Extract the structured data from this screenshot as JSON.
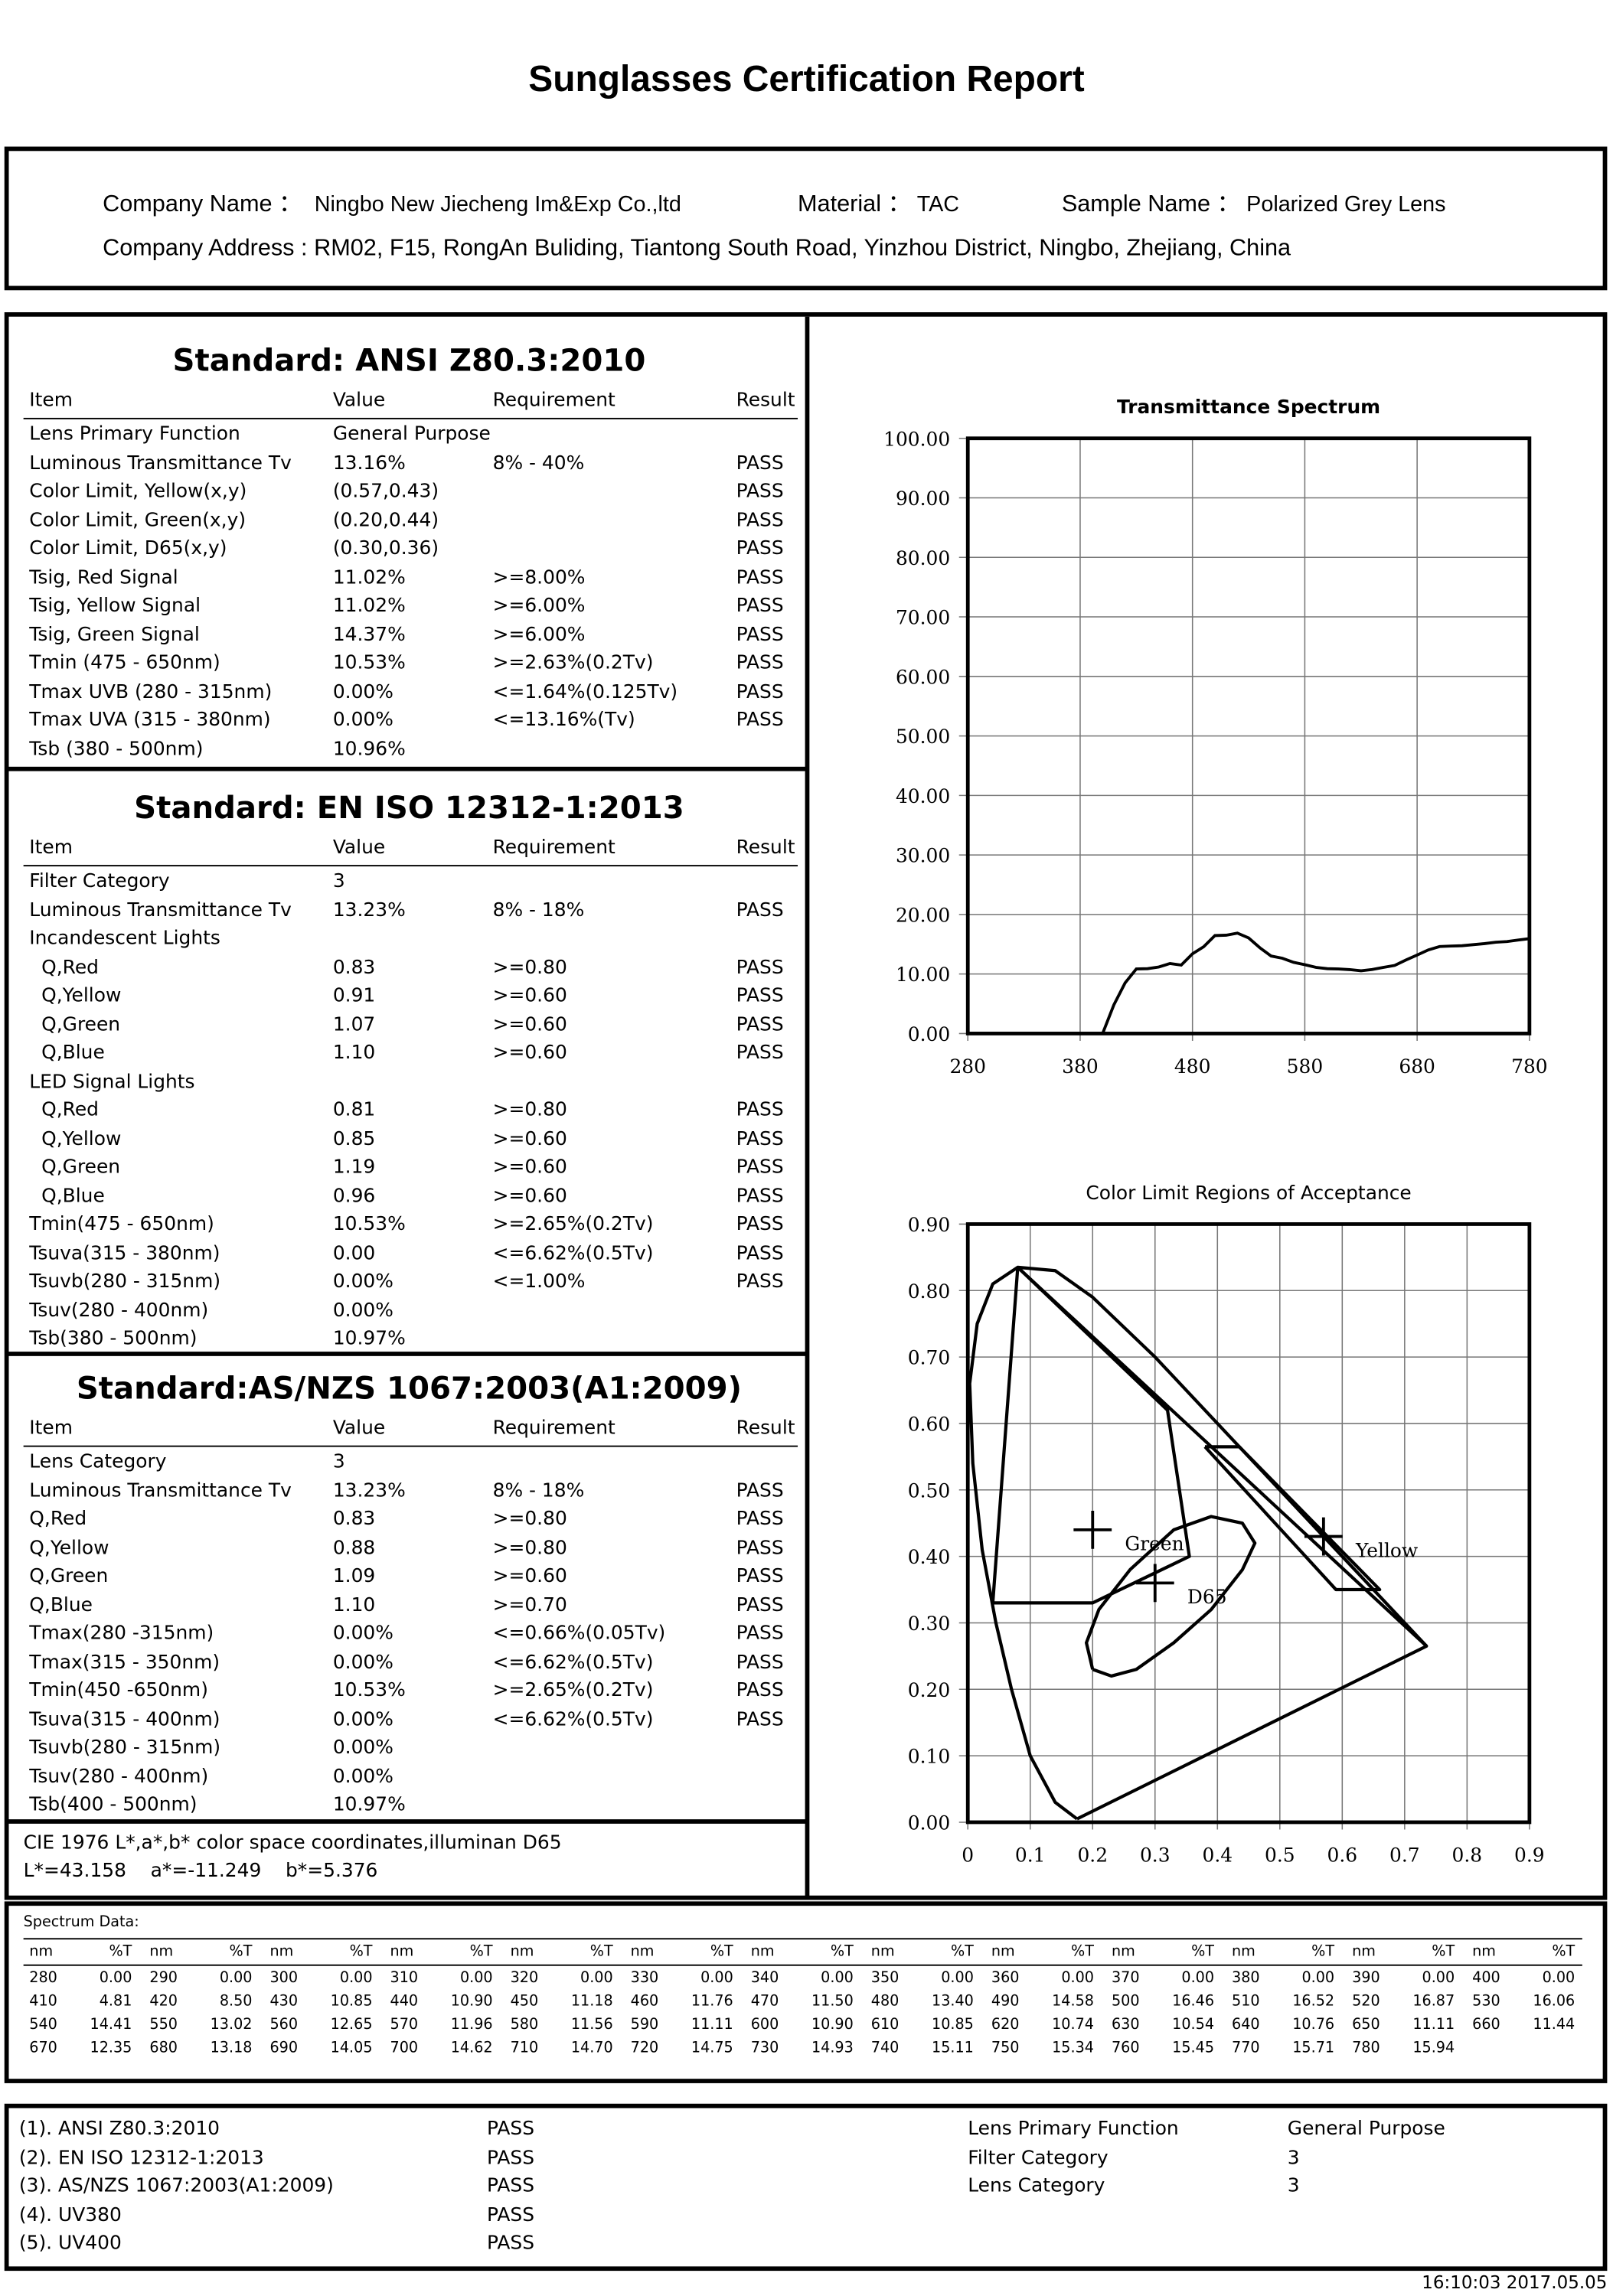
{
  "title": "Sunglasses Certification Report",
  "header": {
    "company_name_label": "Company Name ：",
    "company_name": "Ningbo New Jiecheng Im&Exp Co.,ltd",
    "material_label": "Material ：",
    "material": "TAC",
    "sample_name_label": "Sample Name ：",
    "sample_name": "Polarized Grey Lens",
    "company_address_label": "Company Address :",
    "company_address": "RM02, F15, RongAn Buliding, Tiantong South Road, Yinzhou District, Ningbo, Zhejiang, China"
  },
  "columns": [
    "Item",
    "Value",
    "Requirement",
    "Result"
  ],
  "ansi": {
    "title": "Standard: ANSI Z80.3:2010",
    "rows": [
      [
        "Lens Primary Function",
        "General Purpose",
        "",
        ""
      ],
      [
        "Luminous Transmittance Tv",
        "13.16%",
        "8% - 40%",
        "PASS"
      ],
      [
        "Color Limit, Yellow(x,y)",
        "(0.57,0.43)",
        "",
        "PASS"
      ],
      [
        "Color Limit, Green(x,y)",
        "(0.20,0.44)",
        "",
        "PASS"
      ],
      [
        "Color Limit, D65(x,y)",
        "(0.30,0.36)",
        "",
        "PASS"
      ],
      [
        "Tsig, Red Signal",
        "11.02%",
        ">=8.00%",
        "PASS"
      ],
      [
        "Tsig, Yellow Signal",
        "11.02%",
        ">=6.00%",
        "PASS"
      ],
      [
        "Tsig, Green Signal",
        "14.37%",
        ">=6.00%",
        "PASS"
      ],
      [
        "Tmin (475 - 650nm)",
        "10.53%",
        ">=2.63%(0.2Tv)",
        "PASS"
      ],
      [
        "Tmax UVB (280 - 315nm)",
        "0.00%",
        "<=1.64%(0.125Tv)",
        "PASS"
      ],
      [
        "Tmax UVA (315 - 380nm)",
        "0.00%",
        "<=13.16%(Tv)",
        "PASS"
      ],
      [
        "Tsb (380 - 500nm)",
        "10.96%",
        "",
        ""
      ]
    ]
  },
  "en": {
    "title": "Standard: EN ISO 12312-1:2013",
    "rows": [
      [
        "Filter Category",
        "3",
        "",
        ""
      ],
      [
        "Luminous Transmittance Tv",
        "13.23%",
        "8% - 18%",
        "PASS"
      ],
      [
        "Incandescent Lights",
        "",
        "",
        ""
      ],
      [
        "  Q,Red",
        "0.83",
        ">=0.80",
        "PASS"
      ],
      [
        "  Q,Yellow",
        "0.91",
        ">=0.60",
        "PASS"
      ],
      [
        "  Q,Green",
        "1.07",
        ">=0.60",
        "PASS"
      ],
      [
        "  Q,Blue",
        "1.10",
        ">=0.60",
        "PASS"
      ],
      [
        "LED Signal Lights",
        "",
        "",
        ""
      ],
      [
        "  Q,Red",
        "0.81",
        ">=0.80",
        "PASS"
      ],
      [
        "  Q,Yellow",
        "0.85",
        ">=0.60",
        "PASS"
      ],
      [
        "  Q,Green",
        "1.19",
        ">=0.60",
        "PASS"
      ],
      [
        "  Q,Blue",
        "0.96",
        ">=0.60",
        "PASS"
      ],
      [
        "Tmin(475 - 650nm)",
        "10.53%",
        ">=2.65%(0.2Tv)",
        "PASS"
      ],
      [
        "Tsuva(315 - 380nm)",
        "0.00",
        "<=6.62%(0.5Tv)",
        "PASS"
      ],
      [
        "Tsuvb(280 - 315nm)",
        "0.00%",
        "<=1.00%",
        "PASS"
      ],
      [
        "Tsuv(280 - 400nm)",
        "0.00%",
        "",
        ""
      ],
      [
        "Tsb(380 - 500nm)",
        "10.97%",
        "",
        ""
      ]
    ]
  },
  "asnzs": {
    "title": "Standard:AS/NZS 1067:2003(A1:2009)",
    "rows": [
      [
        "Lens Category",
        "3",
        "",
        ""
      ],
      [
        "Luminous Transmittance Tv",
        "13.23%",
        "8% - 18%",
        "PASS"
      ],
      [
        "Q,Red",
        "0.83",
        ">=0.80",
        "PASS"
      ],
      [
        "Q,Yellow",
        "0.88",
        ">=0.80",
        "PASS"
      ],
      [
        "Q,Green",
        "1.09",
        ">=0.60",
        "PASS"
      ],
      [
        "Q,Blue",
        "1.10",
        ">=0.70",
        "PASS"
      ],
      [
        "Tmax(280 -315nm)",
        "0.00%",
        "<=0.66%(0.05Tv)",
        "PASS"
      ],
      [
        "Tmax(315 - 350nm)",
        "0.00%",
        "<=6.62%(0.5Tv)",
        "PASS"
      ],
      [
        "Tmin(450 -650nm)",
        "10.53%",
        ">=2.65%(0.2Tv)",
        "PASS"
      ],
      [
        "Tsuva(315 - 400nm)",
        "0.00%",
        "<=6.62%(0.5Tv)",
        "PASS"
      ],
      [
        "Tsuvb(280 - 315nm)",
        "0.00%",
        "",
        ""
      ],
      [
        "Tsuv(280 - 400nm)",
        "0.00%",
        "",
        ""
      ],
      [
        "Tsb(400 - 500nm)",
        "10.97%",
        "",
        ""
      ]
    ]
  },
  "cie": {
    "line1": "CIE 1976 L*,a*,b* color space coordinates,illuminan D65",
    "line2": "L*=43.158    a*=-11.249    b*=5.376"
  },
  "spectrum_table": {
    "label": "Spectrum Data:",
    "col_nm": "nm",
    "col_t": "%T"
  },
  "summary": {
    "left": [
      [
        "(1). ANSI Z80.3:2010",
        "PASS"
      ],
      [
        "(2). EN ISO 12312-1:2013",
        "PASS"
      ],
      [
        "(3). AS/NZS 1067:2003(A1:2009)",
        "PASS"
      ],
      [
        "(4). UV380",
        "PASS"
      ],
      [
        "(5). UV400",
        "PASS"
      ]
    ],
    "right": [
      [
        "Lens Primary Function",
        "General Purpose"
      ],
      [
        "Filter Category",
        "3"
      ],
      [
        "Lens Category",
        "3"
      ]
    ]
  },
  "timestamp": "16:10:03 2017.05.05",
  "chart_data": [
    {
      "type": "line",
      "title": "Transmittance Spectrum",
      "xlim": [
        280,
        780
      ],
      "ylim": [
        0,
        100
      ],
      "xticks": [
        "280",
        "380",
        "480",
        "580",
        "680",
        "780"
      ],
      "yticks": [
        "0.00",
        "10.00",
        "20.00",
        "30.00",
        "40.00",
        "50.00",
        "60.00",
        "70.00",
        "80.00",
        "90.00",
        "100.00"
      ],
      "grid": true,
      "x": [
        280,
        290,
        300,
        310,
        320,
        330,
        340,
        350,
        360,
        370,
        380,
        390,
        400,
        410,
        420,
        430,
        440,
        450,
        460,
        470,
        480,
        490,
        500,
        510,
        520,
        530,
        540,
        550,
        560,
        570,
        580,
        590,
        600,
        610,
        620,
        630,
        640,
        650,
        660,
        670,
        680,
        690,
        700,
        710,
        720,
        730,
        740,
        750,
        760,
        770,
        780
      ],
      "y": [
        0,
        0,
        0,
        0,
        0,
        0,
        0,
        0,
        0,
        0,
        0,
        0,
        0,
        4.81,
        8.5,
        10.85,
        10.9,
        11.18,
        11.76,
        11.5,
        13.4,
        14.58,
        16.46,
        16.52,
        16.87,
        16.06,
        14.41,
        13.02,
        12.65,
        11.96,
        11.56,
        11.11,
        10.9,
        10.85,
        10.74,
        10.54,
        10.76,
        11.11,
        11.44,
        12.35,
        13.18,
        14.05,
        14.62,
        14.7,
        14.75,
        14.93,
        15.11,
        15.34,
        15.45,
        15.71,
        15.94
      ]
    },
    {
      "type": "scatter",
      "title": "Color Limit Regions of Acceptance",
      "xlim": [
        0,
        0.9
      ],
      "ylim": [
        0,
        0.9
      ],
      "xticks": [
        "0",
        "0.1",
        "0.2",
        "0.3",
        "0.4",
        "0.5",
        "0.6",
        "0.7",
        "0.8",
        "0.9"
      ],
      "yticks": [
        "0.00",
        "0.10",
        "0.20",
        "0.30",
        "0.40",
        "0.50",
        "0.60",
        "0.70",
        "0.80",
        "0.90"
      ],
      "grid": true,
      "points": [
        {
          "label": "Green",
          "x": 0.2,
          "y": 0.44
        },
        {
          "label": "D65",
          "x": 0.3,
          "y": 0.36
        },
        {
          "label": "Yellow",
          "x": 0.57,
          "y": 0.43
        }
      ],
      "regions": {
        "locus": [
          [
            0.175,
            0.005
          ],
          [
            0.14,
            0.03
          ],
          [
            0.1,
            0.1
          ],
          [
            0.07,
            0.2
          ],
          [
            0.045,
            0.3
          ],
          [
            0.023,
            0.41
          ],
          [
            0.008,
            0.54
          ],
          [
            0.003,
            0.66
          ],
          [
            0.015,
            0.75
          ],
          [
            0.04,
            0.81
          ],
          [
            0.08,
            0.835
          ],
          [
            0.14,
            0.83
          ],
          [
            0.2,
            0.79
          ],
          [
            0.3,
            0.7
          ],
          [
            0.4,
            0.6
          ],
          [
            0.5,
            0.5
          ],
          [
            0.6,
            0.4
          ],
          [
            0.7,
            0.3
          ],
          [
            0.735,
            0.265
          ],
          [
            0.175,
            0.005
          ]
        ],
        "green": [
          [
            0.08,
            0.835
          ],
          [
            0.32,
            0.62
          ],
          [
            0.355,
            0.4
          ],
          [
            0.2,
            0.33
          ],
          [
            0.04,
            0.33
          ],
          [
            0.08,
            0.835
          ]
        ],
        "yellow": [
          [
            0.38,
            0.565
          ],
          [
            0.435,
            0.565
          ],
          [
            0.66,
            0.35
          ],
          [
            0.59,
            0.35
          ],
          [
            0.38,
            0.565
          ]
        ],
        "diagonal": [
          [
            0.08,
            0.835
          ],
          [
            0.735,
            0.265
          ]
        ],
        "d65": [
          [
            0.2,
            0.23
          ],
          [
            0.19,
            0.27
          ],
          [
            0.21,
            0.32
          ],
          [
            0.26,
            0.38
          ],
          [
            0.33,
            0.44
          ],
          [
            0.39,
            0.46
          ],
          [
            0.44,
            0.45
          ],
          [
            0.46,
            0.42
          ],
          [
            0.44,
            0.38
          ],
          [
            0.39,
            0.32
          ],
          [
            0.33,
            0.27
          ],
          [
            0.27,
            0.23
          ],
          [
            0.23,
            0.22
          ],
          [
            0.2,
            0.23
          ]
        ]
      }
    }
  ]
}
